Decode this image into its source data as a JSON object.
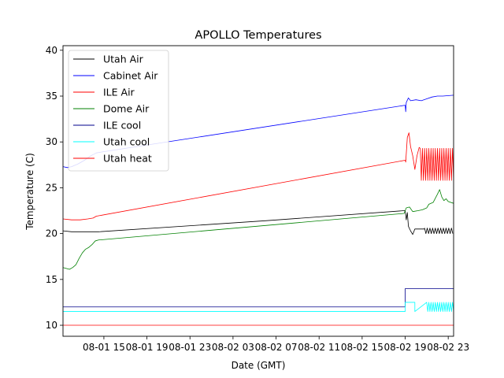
{
  "chart_data": {
    "type": "line",
    "title": "APOLLO Temperatures",
    "xlabel": "Date (GMT)",
    "ylabel": "Temperature (C)",
    "xlim": [
      11.2,
      47.5
    ],
    "ylim": [
      8.8,
      40.5
    ],
    "x_unit": "hours since 08-01 00:00 GMT",
    "x_ticks": [
      {
        "value": 15,
        "label": "08-01 15"
      },
      {
        "value": 19,
        "label": "08-01 19"
      },
      {
        "value": 23,
        "label": "08-01 23"
      },
      {
        "value": 27,
        "label": "08-02 03"
      },
      {
        "value": 31,
        "label": "08-02 07"
      },
      {
        "value": 35,
        "label": "08-02 11"
      },
      {
        "value": 39,
        "label": "08-02 15"
      },
      {
        "value": 43,
        "label": "08-02 19"
      },
      {
        "value": 47,
        "label": "08-02 23"
      }
    ],
    "y_ticks": [
      10,
      15,
      20,
      25,
      30,
      35,
      40
    ],
    "legend_position": "upper-left",
    "series": [
      {
        "name": "Utah Air",
        "color": "#000000",
        "points": [
          [
            11.2,
            20.3
          ],
          [
            12.0,
            20.2
          ],
          [
            13.0,
            20.2
          ],
          [
            14.0,
            20.2
          ],
          [
            14.5,
            20.2
          ],
          [
            30.0,
            21.4
          ],
          [
            42.9,
            22.5
          ],
          [
            43.0,
            22.5
          ],
          [
            43.1,
            21.5
          ],
          [
            43.2,
            22.3
          ],
          [
            43.3,
            20.8
          ],
          [
            43.5,
            20.3
          ],
          [
            43.7,
            19.9
          ],
          [
            43.9,
            20.5
          ],
          [
            44.5,
            20.5
          ],
          [
            44.8,
            20.5
          ]
        ],
        "oscillation": {
          "from": 44.8,
          "to": 47.5,
          "low": 20.0,
          "high": 20.6,
          "period": 0.25
        }
      },
      {
        "name": "Cabinet Air",
        "color": "#0000ff",
        "points": [
          [
            11.2,
            27.3
          ],
          [
            11.6,
            27.2
          ],
          [
            12.0,
            27.3
          ],
          [
            12.6,
            27.6
          ],
          [
            13.2,
            28.0
          ],
          [
            13.8,
            28.5
          ],
          [
            14.3,
            28.8
          ],
          [
            14.8,
            28.9
          ],
          [
            43.0,
            34.0
          ],
          [
            43.05,
            33.3
          ],
          [
            43.1,
            34.3
          ],
          [
            43.3,
            34.8
          ],
          [
            43.5,
            34.5
          ],
          [
            44.0,
            34.6
          ],
          [
            44.5,
            34.5
          ],
          [
            45.0,
            34.7
          ],
          [
            45.5,
            34.9
          ],
          [
            46.0,
            35.0
          ],
          [
            46.5,
            35.0
          ],
          [
            47.5,
            35.1
          ]
        ]
      },
      {
        "name": "ILE Air",
        "color": "#ff0000",
        "points": [
          [
            11.2,
            21.6
          ],
          [
            12.0,
            21.5
          ],
          [
            12.8,
            21.5
          ],
          [
            13.5,
            21.6
          ],
          [
            14.0,
            21.7
          ],
          [
            14.3,
            21.9
          ],
          [
            43.0,
            28.0
          ],
          [
            43.05,
            27.8
          ],
          [
            43.2,
            30.5
          ],
          [
            43.35,
            31.0
          ],
          [
            43.5,
            29.5
          ],
          [
            43.7,
            28.5
          ],
          [
            43.9,
            27.0
          ],
          [
            44.1,
            28.5
          ],
          [
            44.3,
            29.4
          ]
        ],
        "oscillation": {
          "from": 44.4,
          "to": 47.5,
          "low": 25.8,
          "high": 29.3,
          "period": 0.2
        }
      },
      {
        "name": "Dome Air",
        "color": "#008000",
        "points": [
          [
            11.2,
            16.3
          ],
          [
            11.5,
            16.2
          ],
          [
            11.8,
            16.1
          ],
          [
            12.1,
            16.3
          ],
          [
            12.4,
            16.6
          ],
          [
            12.7,
            17.3
          ],
          [
            13.0,
            17.9
          ],
          [
            13.3,
            18.3
          ],
          [
            13.6,
            18.5
          ],
          [
            13.9,
            18.8
          ],
          [
            14.2,
            19.2
          ],
          [
            14.5,
            19.3
          ],
          [
            42.9,
            22.2
          ],
          [
            43.1,
            22.8
          ],
          [
            43.4,
            22.9
          ],
          [
            43.7,
            22.4
          ],
          [
            44.2,
            22.5
          ],
          [
            44.6,
            22.6
          ],
          [
            45.0,
            22.8
          ],
          [
            45.2,
            23.2
          ],
          [
            45.6,
            23.4
          ],
          [
            46.0,
            24.3
          ],
          [
            46.2,
            24.8
          ],
          [
            46.4,
            24.0
          ],
          [
            46.6,
            23.6
          ],
          [
            46.8,
            23.8
          ],
          [
            47.0,
            23.5
          ],
          [
            47.5,
            23.3
          ]
        ]
      },
      {
        "name": "ILE cool",
        "color": "#00008b",
        "points": [
          [
            11.2,
            12.0
          ],
          [
            43.0,
            12.0
          ],
          [
            43.0,
            14.0
          ],
          [
            47.5,
            14.0
          ]
        ]
      },
      {
        "name": "Utah cool",
        "color": "#00ffff",
        "points": [
          [
            11.2,
            11.5
          ],
          [
            43.0,
            11.5
          ],
          [
            43.0,
            12.5
          ],
          [
            43.9,
            12.5
          ],
          [
            43.9,
            11.5
          ]
        ],
        "oscillation": {
          "from": 45.0,
          "to": 47.5,
          "low": 11.5,
          "high": 12.5,
          "period": 0.2
        }
      },
      {
        "name": "Utah heat",
        "color": "#ff0000",
        "points": [
          [
            11.2,
            10.0
          ],
          [
            47.5,
            10.0
          ]
        ]
      }
    ]
  }
}
